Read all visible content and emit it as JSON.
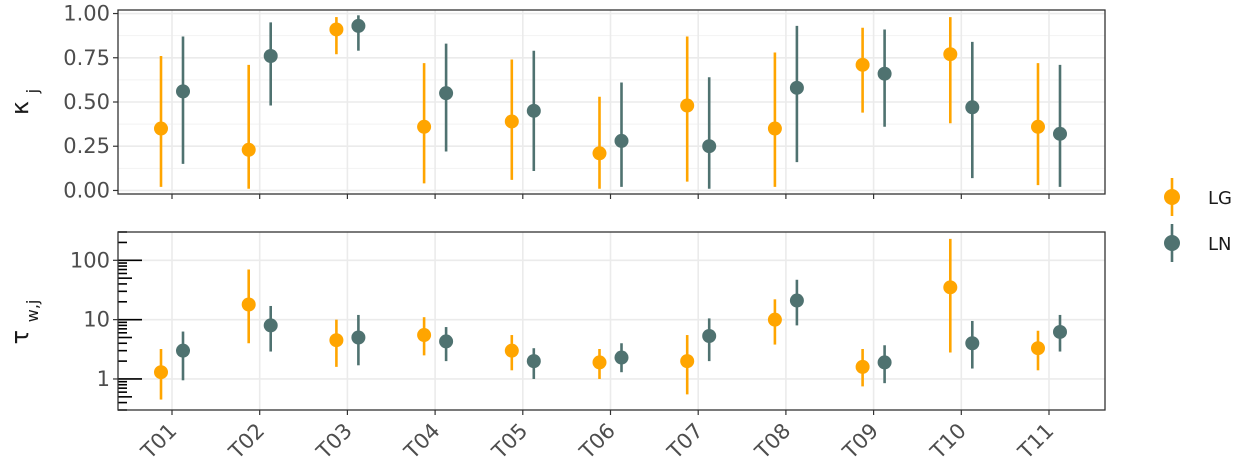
{
  "chart_data": [
    {
      "type": "pointrange",
      "ylabel": "κj",
      "ylim": [
        -0.02,
        1.02
      ],
      "yticks": [
        {
          "value": 0.0,
          "label": "0.00"
        },
        {
          "value": 0.25,
          "label": "0.25"
        },
        {
          "value": 0.5,
          "label": "0.50"
        },
        {
          "value": 0.75,
          "label": "0.75"
        },
        {
          "value": 1.0,
          "label": "1.00"
        }
      ],
      "categories": [
        "T01",
        "T02",
        "T03",
        "T04",
        "T05",
        "T06",
        "T07",
        "T08",
        "T09",
        "T10",
        "T11"
      ],
      "series": [
        {
          "name": "LG",
          "color": "#FFA500",
          "estimate": [
            0.35,
            0.23,
            0.91,
            0.36,
            0.39,
            0.21,
            0.48,
            0.35,
            0.71,
            0.77,
            0.36
          ],
          "lower": [
            0.02,
            0.01,
            0.77,
            0.04,
            0.06,
            0.01,
            0.05,
            0.02,
            0.44,
            0.38,
            0.03
          ],
          "upper": [
            0.76,
            0.71,
            0.98,
            0.72,
            0.74,
            0.53,
            0.87,
            0.78,
            0.92,
            0.98,
            0.72
          ]
        },
        {
          "name": "LN",
          "color": "#4F7270",
          "estimate": [
            0.56,
            0.76,
            0.93,
            0.55,
            0.45,
            0.28,
            0.25,
            0.58,
            0.66,
            0.47,
            0.32
          ],
          "lower": [
            0.15,
            0.48,
            0.79,
            0.22,
            0.11,
            0.02,
            0.01,
            0.16,
            0.36,
            0.07,
            0.02
          ],
          "upper": [
            0.87,
            0.95,
            0.99,
            0.83,
            0.79,
            0.61,
            0.64,
            0.93,
            0.91,
            0.84,
            0.71
          ]
        }
      ]
    },
    {
      "type": "pointrange",
      "ylabel": "τw,j",
      "yscale": "log",
      "ylim": [
        0.3,
        300
      ],
      "yticks": [
        {
          "value": 1,
          "label": "1"
        },
        {
          "value": 10,
          "label": "10"
        },
        {
          "value": 100,
          "label": "100"
        }
      ],
      "categories": [
        "T01",
        "T02",
        "T03",
        "T04",
        "T05",
        "T06",
        "T07",
        "T08",
        "T09",
        "T10",
        "T11"
      ],
      "series": [
        {
          "name": "LG",
          "color": "#FFA500",
          "estimate": [
            1.3,
            18,
            4.5,
            5.5,
            3.0,
            1.9,
            2.0,
            10,
            1.6,
            35,
            3.3
          ],
          "lower": [
            0.45,
            4.0,
            1.6,
            2.5,
            1.4,
            1.0,
            0.55,
            3.8,
            0.75,
            2.8,
            1.4
          ],
          "upper": [
            3.2,
            70,
            10,
            11,
            5.5,
            3.2,
            5.5,
            22,
            3.2,
            230,
            6.5
          ]
        },
        {
          "name": "LN",
          "color": "#4F7270",
          "estimate": [
            3.0,
            8.0,
            5.0,
            4.3,
            2.0,
            2.3,
            5.3,
            21,
            1.9,
            4.0,
            6.2
          ],
          "lower": [
            0.95,
            2.9,
            1.7,
            2.0,
            1.0,
            1.3,
            2.0,
            8.0,
            0.85,
            1.5,
            2.9
          ],
          "upper": [
            6.3,
            17,
            12,
            7.5,
            3.3,
            4.0,
            10.5,
            47,
            3.7,
            9.5,
            12
          ]
        }
      ]
    }
  ],
  "legend": {
    "position": "right",
    "items": [
      {
        "label": "LG",
        "color": "#FFA500"
      },
      {
        "label": "LN",
        "color": "#4F7270"
      }
    ]
  }
}
